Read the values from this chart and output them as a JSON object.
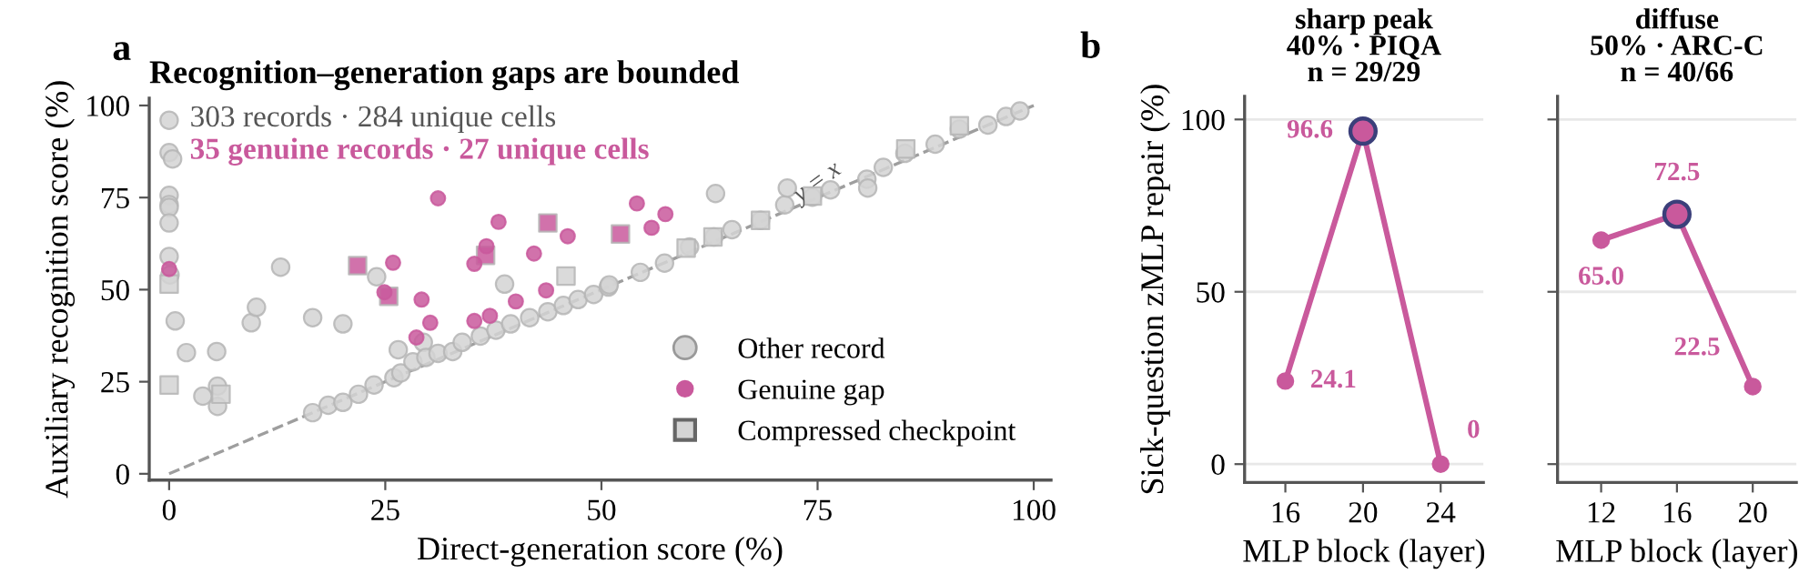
{
  "chart_data": [
    {
      "type": "scatter",
      "title": "Recognition–generation gaps are bounded",
      "xlabel": "Direct-generation score (%)",
      "ylabel": "Auxiliary recognition score (%)",
      "xlim": [
        -2.3,
        102
      ],
      "ylim": [
        -1.7,
        102
      ],
      "xticks": [
        0,
        25,
        50,
        75,
        100
      ],
      "yticks": [
        0,
        25,
        50,
        75,
        100
      ],
      "legend": "bottom right",
      "annotations": [
        "a",
        "303 records · 284 unique cells",
        "35 genuine records · 27 unique cells",
        {
          "text": "y = x",
          "x": 75,
          "y": 79
        }
      ],
      "series": [
        {
          "type": "line",
          "color": "#9e9e9e",
          "line_style": "dashed",
          "x": [
            0,
            100
          ],
          "values": [
            0,
            100
          ]
        },
        {
          "name": "Other record",
          "color": "#d4d4d4",
          "marker": "circle",
          "x": [
            0,
            0,
            0.4,
            0,
            0,
            0,
            0,
            0,
            0.1,
            0.7,
            2.0,
            3.9,
            5.6,
            5.6,
            5.5,
            9.5,
            10.1,
            12.9,
            16.6,
            20.1,
            24.0,
            26.5,
            29.4,
            38.8,
            63.2,
            16.6,
            18.4,
            20.1,
            21.9,
            23.7,
            26.0,
            26.8,
            28.2,
            29.7,
            31.1,
            32.8,
            33.9,
            36.0,
            37.8,
            39.5,
            41.7,
            43.8,
            45.6,
            47.3,
            49.1,
            50.8,
            50.9,
            54.5,
            57.3,
            60.2,
            63.0,
            65.1,
            68.4,
            71.2,
            74.4,
            76.5,
            80.7,
            82.6,
            85.1,
            88.6,
            91.4,
            94.7,
            96.8,
            98.4,
            80.8,
            71.5
          ],
          "values": [
            96,
            87.2,
            85.5,
            75.6,
            73.1,
            72.3,
            68.1,
            59,
            54,
            41.5,
            32.9,
            21.1,
            18.3,
            23.8,
            33.2,
            41.0,
            45.2,
            56.1,
            42.4,
            40.7,
            53.5,
            33.7,
            35.7,
            51.5,
            76.1,
            16.6,
            18.6,
            19.4,
            21.6,
            24.1,
            26.1,
            27.4,
            30.4,
            31.6,
            32.7,
            33.2,
            35.7,
            37.4,
            39.0,
            40.7,
            42.4,
            44.0,
            45.7,
            47.3,
            48.7,
            50.7,
            51.3,
            54.7,
            57.2,
            61.6,
            64.3,
            66.3,
            68.8,
            73,
            75.1,
            77.1,
            80,
            83.2,
            87.0,
            89.5,
            93.6,
            94.7,
            97,
            98.5,
            77.6,
            77.6
          ]
        },
        {
          "name": "Genuine gap",
          "color": "#c9599c",
          "marker": "circle",
          "x": [
            0,
            31.1,
            25.9,
            24.9,
            29.2,
            28.6,
            30.2,
            35.3,
            35.3,
            37.1,
            36.7,
            38.1,
            40.1,
            42.2,
            43.6,
            46.1,
            54.1,
            55.8,
            57.4
          ],
          "values": [
            55.6,
            74.8,
            57.3,
            49.3,
            47.3,
            37.0,
            41.0,
            57.0,
            41.5,
            42.9,
            61.8,
            68.4,
            46.8,
            59.8,
            49.8,
            64.5,
            73.4,
            66.8,
            70.5
          ]
        },
        {
          "name": "Compressed checkpoint",
          "color": "#d4d4d4",
          "marker": "square",
          "x": [
            0,
            0,
            6.0,
            45.9,
            62.9,
            68.4,
            74.4,
            85.2,
            91.4,
            59.8
          ],
          "values": [
            51.5,
            24.1,
            21.6,
            53.7,
            64.3,
            68.8,
            75.4,
            88.2,
            94.5,
            61.3
          ]
        },
        {
          "color": "#c9599c",
          "marker": "square",
          "x": [
            21.8,
            25.4,
            36.6,
            43.8,
            52.2
          ],
          "values": [
            56.5,
            48.2,
            59.3,
            68.1,
            65.1
          ]
        }
      ]
    },
    {
      "type": "line",
      "title": "sharp peak\n40% · PIQA\nn = 29/29",
      "xlabel": "MLP block (layer)",
      "ylabel": "Sick-question zMLP repair (%)",
      "xlim": [
        13.9,
        26.2
      ],
      "ylim": [
        -5.3,
        106.7
      ],
      "xticks": [
        16,
        20,
        24
      ],
      "yticks": [
        0,
        50,
        100
      ],
      "grid": "y",
      "annotations": [
        "b"
      ],
      "series": [
        {
          "color": "#c9599c",
          "marker": "circle",
          "x": [
            16,
            20,
            24
          ],
          "values": [
            24.1,
            96.6,
            0
          ],
          "value_labels": [
            "24.1",
            "96.6",
            "0"
          ]
        },
        {
          "type": "scatter",
          "color": "#c9599c",
          "x": [
            20
          ],
          "values": [
            96.6
          ]
        }
      ]
    },
    {
      "type": "line",
      "title": "diffuse\n50% · ARC-C\nn = 40/66",
      "xlabel": "MLP block (layer)",
      "xlim": [
        9.7,
        22.3
      ],
      "ylim": [
        -5.3,
        106.7
      ],
      "xticks": [
        12,
        16,
        20
      ],
      "yticks": [
        0,
        50,
        100
      ],
      "grid": "y",
      "tick_labels": "x",
      "series": [
        {
          "color": "#c9599c",
          "marker": "circle",
          "x": [
            12,
            16,
            20
          ],
          "values": [
            65.0,
            72.5,
            22.5
          ],
          "value_labels": [
            "65.0",
            "72.5",
            "22.5"
          ]
        },
        {
          "type": "scatter",
          "color": "#c9599c",
          "x": [
            16
          ],
          "values": [
            72.5
          ]
        }
      ]
    }
  ]
}
